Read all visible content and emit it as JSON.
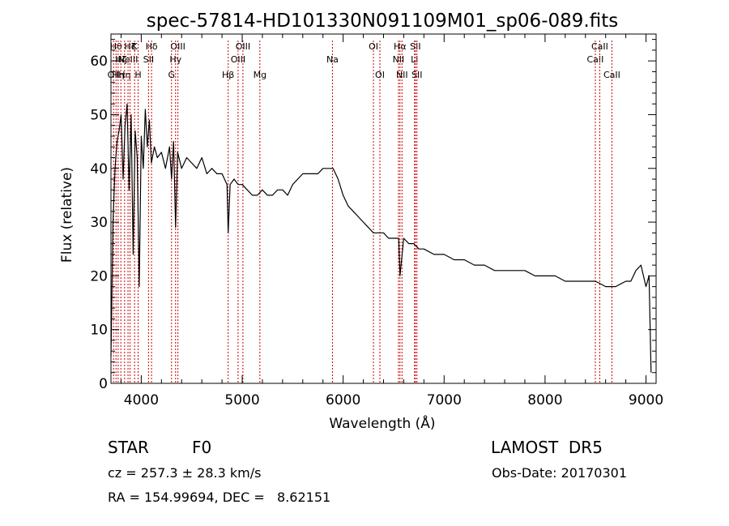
{
  "chart_data": {
    "type": "line",
    "title": "spec-57814-HD101330N091109M01_sp06-089.fits",
    "xlabel": "Wavelength (Å)",
    "ylabel": "Flux (relative)",
    "xlim": [
      3700,
      9100
    ],
    "ylim": [
      0,
      65
    ],
    "xticks": [
      4000,
      5000,
      6000,
      7000,
      8000,
      9000
    ],
    "yticks": [
      0,
      10,
      20,
      30,
      40,
      50,
      60
    ],
    "grid": false,
    "line_color": "#000000",
    "marker_color": "#cc0000",
    "series": [
      {
        "x": [
          3700,
          3720,
          3740,
          3760,
          3780,
          3800,
          3820,
          3840,
          3860,
          3880,
          3900,
          3920,
          3940,
          3960,
          3980,
          4000,
          4020,
          4040,
          4060,
          4080,
          4100,
          4130,
          4160,
          4200,
          4240,
          4280,
          4300,
          4320,
          4340,
          4360,
          4400,
          4450,
          4500,
          4550,
          4600,
          4650,
          4700,
          4750,
          4800,
          4850,
          4861,
          4880,
          4920,
          4960,
          5000,
          5050,
          5100,
          5150,
          5200,
          5250,
          5300,
          5350,
          5400,
          5450,
          5500,
          5550,
          5600,
          5650,
          5700,
          5750,
          5800,
          5850,
          5900,
          5950,
          6000,
          6050,
          6100,
          6150,
          6200,
          6250,
          6300,
          6350,
          6400,
          6450,
          6500,
          6550,
          6563,
          6600,
          6650,
          6700,
          6750,
          6800,
          6900,
          7000,
          7100,
          7200,
          7300,
          7400,
          7500,
          7600,
          7700,
          7800,
          7900,
          8000,
          8100,
          8200,
          8300,
          8400,
          8500,
          8600,
          8700,
          8800,
          8850,
          8900,
          8950,
          9000,
          9030,
          9050
        ],
        "y": [
          5,
          30,
          40,
          45,
          47,
          50,
          38,
          48,
          52,
          36,
          50,
          24,
          47,
          42,
          18,
          46,
          40,
          51,
          44,
          49,
          41,
          44,
          42,
          43,
          40,
          44,
          38,
          45,
          29,
          43,
          40,
          42,
          41,
          40,
          42,
          39,
          40,
          39,
          39,
          37,
          28,
          37,
          38,
          37,
          37,
          36,
          35,
          35,
          36,
          35,
          35,
          36,
          36,
          35,
          37,
          38,
          39,
          39,
          39,
          39,
          40,
          40,
          40,
          38,
          35,
          33,
          32,
          31,
          30,
          29,
          28,
          28,
          28,
          27,
          27,
          27,
          20,
          27,
          26,
          26,
          25,
          25,
          24,
          24,
          23,
          23,
          22,
          22,
          21,
          21,
          21,
          21,
          20,
          20,
          20,
          19,
          19,
          19,
          19,
          18,
          18,
          19,
          19,
          21,
          22,
          18,
          20,
          2
        ]
      }
    ],
    "line_markers": [
      {
        "x": 3726,
        "label": "OII",
        "row": 3
      },
      {
        "x": 3750,
        "label": "Hθ",
        "row": 1
      },
      {
        "x": 3771,
        "label": "Hη",
        "row": 3
      },
      {
        "x": 3798,
        "label": "Hζ",
        "row": 2
      },
      {
        "x": 3835,
        "label": "Hη",
        "row": 3
      },
      {
        "x": 3869,
        "label": "NeIII",
        "row": 2
      },
      {
        "x": 3889,
        "label": "Hζ",
        "row": 1
      },
      {
        "x": 3934,
        "label": "K",
        "row": 1
      },
      {
        "x": 3969,
        "label": "H",
        "row": 3
      },
      {
        "x": 4102,
        "label": "Hδ",
        "row": 1
      },
      {
        "x": 4072,
        "label": "SII",
        "row": 2
      },
      {
        "x": 4300,
        "label": "G",
        "row": 3
      },
      {
        "x": 4340,
        "label": "Hγ",
        "row": 2
      },
      {
        "x": 4363,
        "label": "OIII",
        "row": 1
      },
      {
        "x": 4861,
        "label": "Hβ",
        "row": 3
      },
      {
        "x": 4959,
        "label": "OIII",
        "row": 2
      },
      {
        "x": 5007,
        "label": "OIII",
        "row": 1
      },
      {
        "x": 5175,
        "label": "Mg",
        "row": 3
      },
      {
        "x": 5894,
        "label": "Na",
        "row": 2
      },
      {
        "x": 6300,
        "label": "OI",
        "row": 1
      },
      {
        "x": 6364,
        "label": "OI",
        "row": 3
      },
      {
        "x": 6548,
        "label": "NII",
        "row": 2
      },
      {
        "x": 6563,
        "label": "Hα",
        "row": 1
      },
      {
        "x": 6583,
        "label": "NII",
        "row": 3
      },
      {
        "x": 6707,
        "label": "Li",
        "row": 2
      },
      {
        "x": 6716,
        "label": "SII",
        "row": 1
      },
      {
        "x": 6731,
        "label": "SII",
        "row": 3
      },
      {
        "x": 8498,
        "label": "CaII",
        "row": 2
      },
      {
        "x": 8542,
        "label": "CaII",
        "row": 1
      },
      {
        "x": 8662,
        "label": "CaII",
        "row": 3
      }
    ]
  },
  "footer": {
    "object_class": "STAR",
    "subclass": "F0",
    "survey": "LAMOST  DR5",
    "redshift": "cz = 257.3 ± 28.3 km/s",
    "obs_date": "Obs-Date: 20170301",
    "coords": "RA = 154.99694, DEC =   8.62151"
  }
}
